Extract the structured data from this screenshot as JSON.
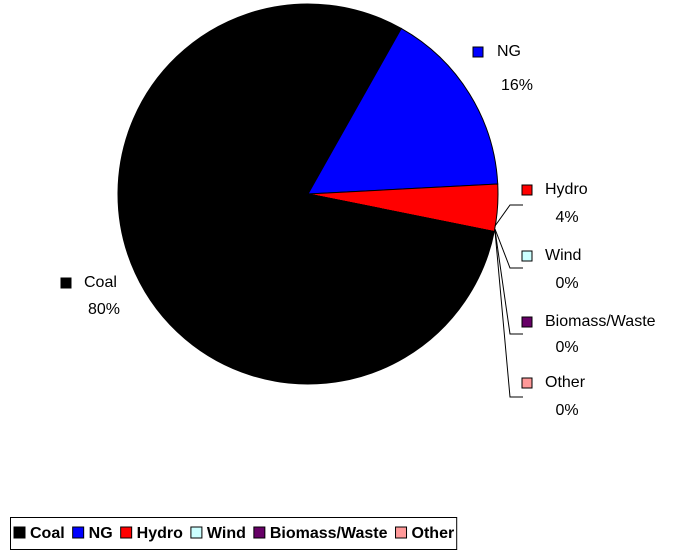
{
  "chart_data": {
    "type": "pie",
    "categories": [
      "Coal",
      "NG",
      "Hydro",
      "Wind",
      "Biomass/Waste",
      "Other"
    ],
    "values": [
      80,
      16,
      4,
      0,
      0,
      0
    ],
    "value_labels": [
      "80%",
      "16%",
      "4%",
      "0%",
      "0%",
      "0%"
    ],
    "colors": [
      "#000000",
      "#0000ff",
      "#ff0000",
      "#ccffff",
      "#660066",
      "#ff9999"
    ],
    "legend": "bottom"
  }
}
